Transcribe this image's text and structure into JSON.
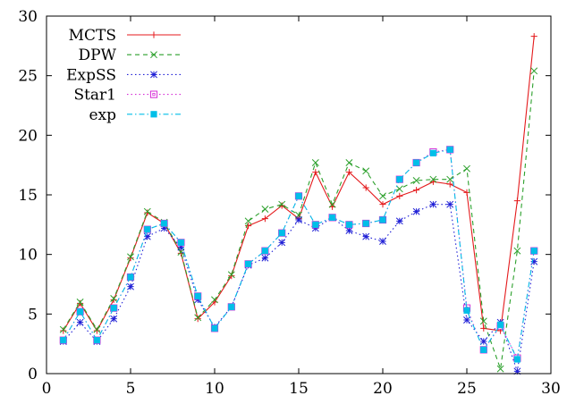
{
  "chart_data": {
    "type": "line",
    "title": "",
    "xlabel": "",
    "ylabel": "",
    "xlim": [
      0,
      30
    ],
    "ylim": [
      0,
      30
    ],
    "xticks": [
      0,
      5,
      10,
      15,
      20,
      25,
      30
    ],
    "yticks": [
      0,
      5,
      10,
      15,
      20,
      25,
      30
    ],
    "grid": false,
    "legend_position": "top-left",
    "x": [
      1,
      2,
      3,
      4,
      5,
      6,
      7,
      8,
      9,
      10,
      11,
      12,
      13,
      14,
      15,
      16,
      17,
      18,
      19,
      20,
      21,
      22,
      23,
      24,
      25,
      26,
      27,
      28,
      29
    ],
    "series": [
      {
        "name": "MCTS",
        "color": "#e41a1c",
        "dash": "solid",
        "marker": "plus",
        "values": [
          3.6,
          5.9,
          3.6,
          6.2,
          9.7,
          13.5,
          12.6,
          10.1,
          4.6,
          6.0,
          8.2,
          12.4,
          13.0,
          14.1,
          13.0,
          16.9,
          14.0,
          16.9,
          15.6,
          14.2,
          14.9,
          15.4,
          16.1,
          15.9,
          15.2,
          3.8,
          3.6,
          14.5,
          28.3
        ]
      },
      {
        "name": "DPW",
        "color": "#2ca02c",
        "dash": "dashed",
        "marker": "x",
        "values": [
          3.7,
          6.0,
          3.7,
          6.3,
          9.8,
          13.6,
          12.7,
          10.2,
          4.7,
          6.2,
          8.3,
          12.8,
          13.8,
          14.2,
          13.3,
          17.7,
          14.2,
          17.7,
          17.0,
          14.9,
          15.5,
          16.2,
          16.3,
          16.3,
          17.2,
          4.4,
          0.4,
          10.3,
          25.4
        ]
      },
      {
        "name": "ExpSS",
        "color": "#1f1fd6",
        "dash": "dotted",
        "marker": "star",
        "values": [
          2.7,
          4.3,
          2.7,
          4.6,
          7.3,
          11.5,
          12.2,
          10.6,
          6.2,
          3.9,
          5.6,
          9.1,
          9.7,
          11.0,
          12.9,
          12.2,
          13.1,
          12.0,
          11.5,
          11.1,
          12.8,
          13.6,
          14.2,
          14.2,
          4.5,
          2.7,
          4.3,
          0.2,
          9.4
        ]
      },
      {
        "name": "Star1",
        "color": "#d62ad6",
        "dash": "dotted",
        "marker": "open-square",
        "values": [
          2.8,
          5.2,
          2.8,
          5.5,
          8.1,
          12.1,
          12.6,
          11.0,
          6.5,
          3.8,
          5.6,
          9.2,
          10.3,
          11.8,
          14.9,
          12.5,
          13.1,
          12.5,
          12.6,
          12.9,
          16.3,
          17.7,
          18.6,
          18.8,
          5.5,
          2.0,
          4.0,
          1.3,
          10.3
        ]
      },
      {
        "name": "exp",
        "color": "#00bfe8",
        "dash": "dashdot",
        "marker": "filled-square",
        "values": [
          2.8,
          5.2,
          2.8,
          5.5,
          8.1,
          12.1,
          12.6,
          11.0,
          6.5,
          3.8,
          5.6,
          9.2,
          10.3,
          11.8,
          14.9,
          12.5,
          13.1,
          12.5,
          12.6,
          12.9,
          16.3,
          17.7,
          18.5,
          18.8,
          5.3,
          2.0,
          4.1,
          1.2,
          10.3
        ]
      }
    ]
  }
}
